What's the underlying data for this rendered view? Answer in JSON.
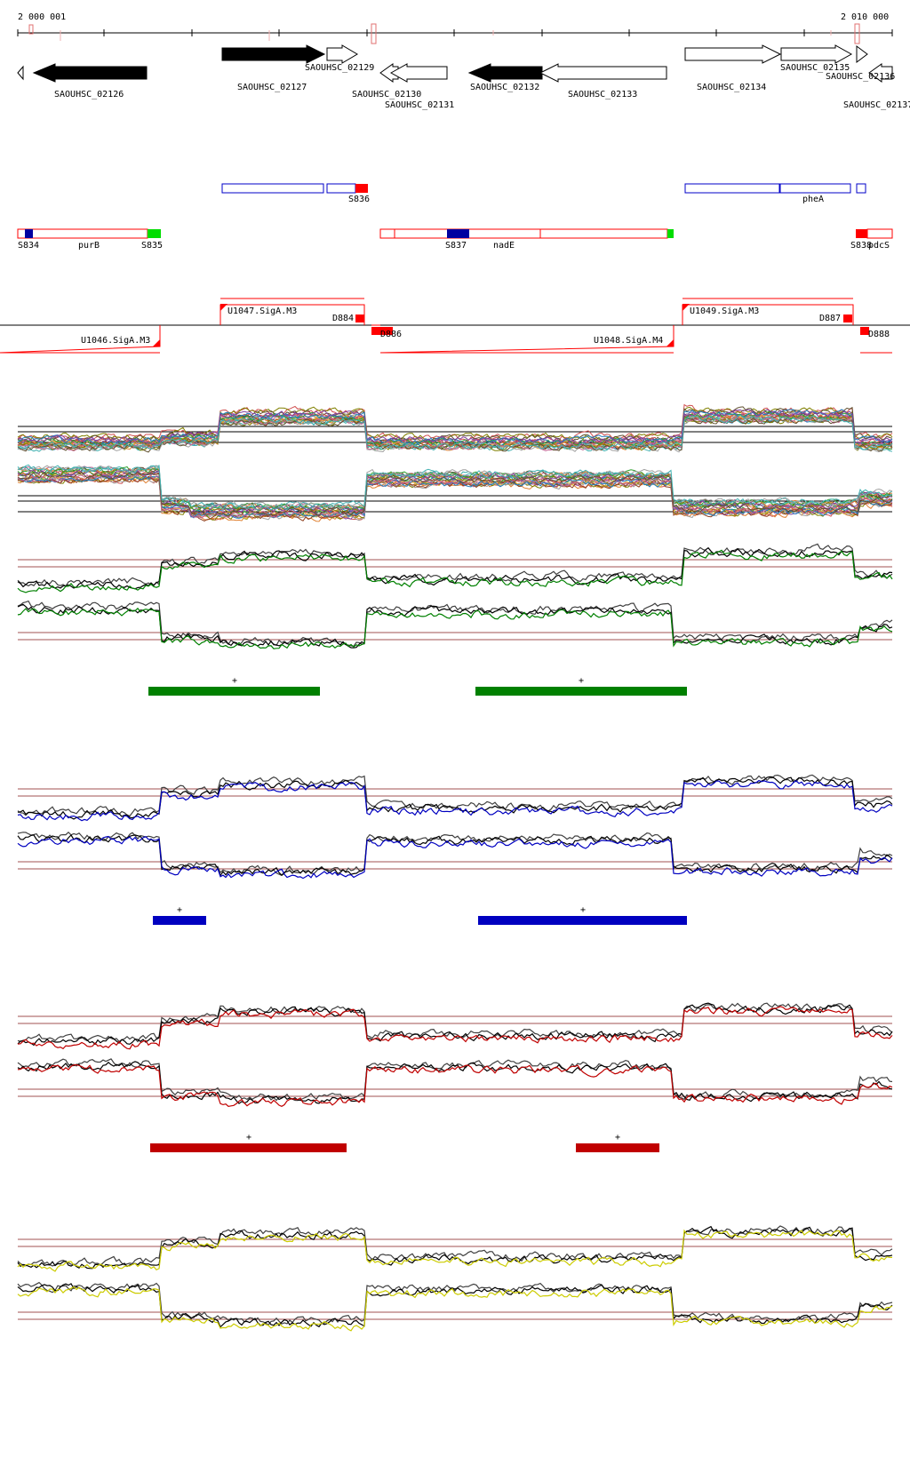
{
  "ruler": {
    "start_label": "2 000 001",
    "end_label": "2 010 000"
  },
  "genes": [
    {
      "id": "SAOUHSC_02126",
      "filled": true,
      "dir": "left"
    },
    {
      "id": "SAOUHSC_02127",
      "filled": true,
      "dir": "right"
    },
    {
      "id": "SAOUHSC_02129",
      "filled": false,
      "dir": "right"
    },
    {
      "id": "SAOUHSC_02130",
      "filled": false,
      "dir": "left"
    },
    {
      "id": "SAOUHSC_02131",
      "filled": false,
      "dir": "left"
    },
    {
      "id": "SAOUHSC_02132",
      "filled": true,
      "dir": "left"
    },
    {
      "id": "SAOUHSC_02133",
      "filled": false,
      "dir": "left"
    },
    {
      "id": "SAOUHSC_02134",
      "filled": false,
      "dir": "right"
    },
    {
      "id": "SAOUHSC_02135",
      "filled": false,
      "dir": "right"
    },
    {
      "id": "SAOUHSC_02136",
      "filled": false,
      "dir": "left"
    },
    {
      "id": "SAOUHSC_02137",
      "filled": false,
      "dir": "right"
    }
  ],
  "segments_plus": [
    {
      "label": "S836"
    },
    {
      "label": "pheA"
    }
  ],
  "segments_minus": [
    {
      "label": "S834"
    },
    {
      "label": "purB"
    },
    {
      "label": "S835"
    },
    {
      "label": "S837"
    },
    {
      "label": "nadE"
    },
    {
      "label": "S838"
    },
    {
      "label": "pdcS"
    }
  ],
  "promoters": [
    {
      "label": "U1047.SigA.M3",
      "strand": "+"
    },
    {
      "label": "U1049.SigA.M3",
      "strand": "+"
    },
    {
      "label": "U1046.SigA.M3",
      "strand": "-"
    },
    {
      "label": "U1048.SigA.M4",
      "strand": "-"
    }
  ],
  "downshifts": [
    {
      "label": "D884"
    },
    {
      "label": "D886"
    },
    {
      "label": "D887"
    },
    {
      "label": "D888"
    }
  ],
  "condition_groups": [
    {
      "color": "#008000",
      "bar_marks": [
        "+",
        "+"
      ]
    },
    {
      "color": "#0000c0",
      "bar_marks": [
        "+",
        "+"
      ]
    },
    {
      "color": "#c00000",
      "bar_marks": [
        "+",
        "+"
      ]
    },
    {
      "color": "#cccc00",
      "bar_marks": []
    }
  ],
  "colors": {
    "feature_red": "#ff0000",
    "segment_blue": "#0000c8",
    "segment_green": "#00dd00",
    "threshold_line": "#a05050"
  }
}
